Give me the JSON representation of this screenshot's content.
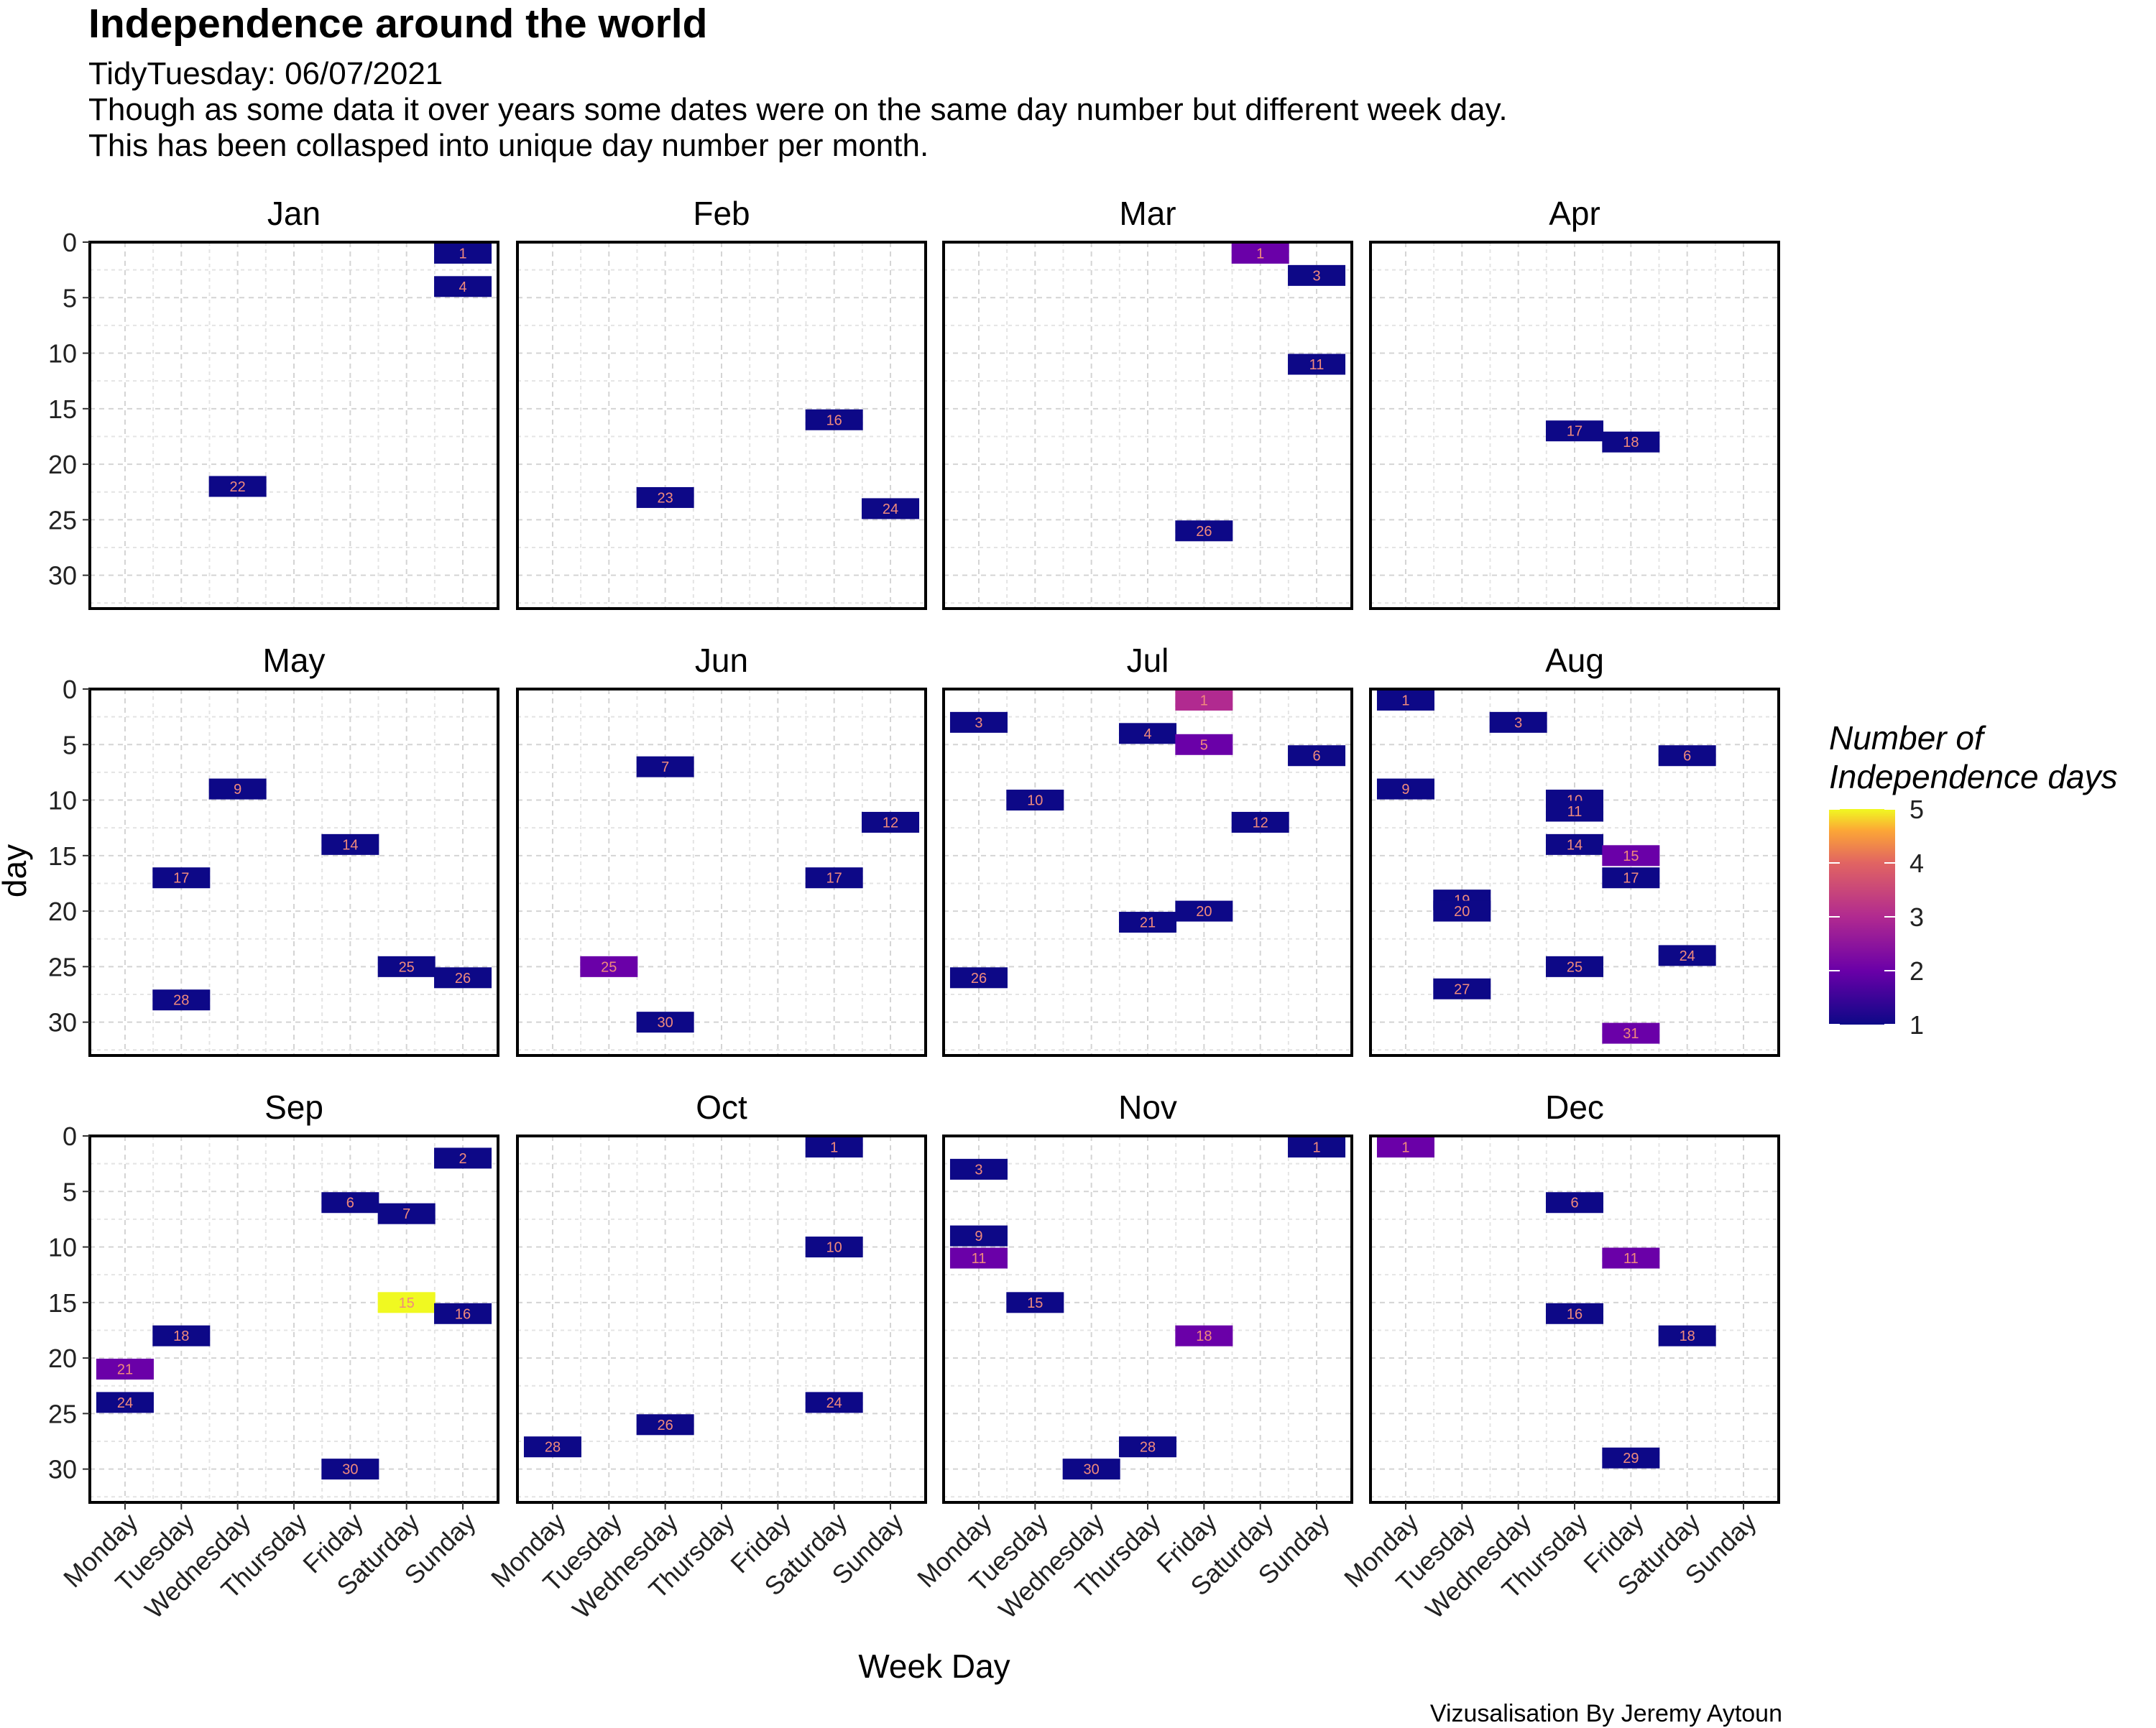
{
  "title": "Independence around the world",
  "subtitle_lines": [
    "TidyTuesday: 06/07/2021",
    "Though as some data it over years some dates were on the same day number but different week day.",
    "This has been collasped into unique day number per month."
  ],
  "caption": "Vizusalisation By Jeremy Aytoun",
  "chart_data": {
    "type": "heatmap",
    "facet_by": "month",
    "xlabel": "Week Day",
    "ylabel": "day",
    "weekdays": [
      "Monday",
      "Tuesday",
      "Wednesday",
      "Thursday",
      "Friday",
      "Saturday",
      "Sunday"
    ],
    "y_ticks": [
      0,
      5,
      10,
      15,
      20,
      25,
      30
    ],
    "y_range": [
      0,
      33
    ],
    "y_reversed": true,
    "grid": true,
    "legend": {
      "title_lines": [
        "Number of",
        "Independence days"
      ],
      "placement": "right",
      "min": 1,
      "max": 5,
      "ticks": [
        1,
        2,
        3,
        4,
        5
      ],
      "palette": [
        "#0d0887",
        "#6a00a8",
        "#b12a90",
        "#e16462",
        "#fca636",
        "#f0f921"
      ]
    },
    "label_color": "#f08a7c",
    "months": [
      {
        "name": "Jan",
        "cells": [
          {
            "weekday": "Sunday",
            "day": 1,
            "count": 1
          },
          {
            "weekday": "Sunday",
            "day": 4,
            "count": 1
          },
          {
            "weekday": "Wednesday",
            "day": 22,
            "count": 1
          }
        ]
      },
      {
        "name": "Feb",
        "cells": [
          {
            "weekday": "Saturday",
            "day": 16,
            "count": 1
          },
          {
            "weekday": "Wednesday",
            "day": 23,
            "count": 1
          },
          {
            "weekday": "Sunday",
            "day": 24,
            "count": 1
          }
        ]
      },
      {
        "name": "Mar",
        "cells": [
          {
            "weekday": "Saturday",
            "day": 1,
            "count": 2
          },
          {
            "weekday": "Sunday",
            "day": 3,
            "count": 1
          },
          {
            "weekday": "Sunday",
            "day": 11,
            "count": 1
          },
          {
            "weekday": "Friday",
            "day": 26,
            "count": 1
          }
        ]
      },
      {
        "name": "Apr",
        "cells": [
          {
            "weekday": "Thursday",
            "day": 17,
            "count": 1
          },
          {
            "weekday": "Friday",
            "day": 18,
            "count": 1
          }
        ]
      },
      {
        "name": "May",
        "cells": [
          {
            "weekday": "Wednesday",
            "day": 9,
            "count": 1
          },
          {
            "weekday": "Friday",
            "day": 14,
            "count": 1
          },
          {
            "weekday": "Tuesday",
            "day": 17,
            "count": 1
          },
          {
            "weekday": "Saturday",
            "day": 25,
            "count": 1
          },
          {
            "weekday": "Sunday",
            "day": 26,
            "count": 1
          },
          {
            "weekday": "Tuesday",
            "day": 28,
            "count": 1
          }
        ]
      },
      {
        "name": "Jun",
        "cells": [
          {
            "weekday": "Wednesday",
            "day": 7,
            "count": 1
          },
          {
            "weekday": "Sunday",
            "day": 12,
            "count": 1
          },
          {
            "weekday": "Saturday",
            "day": 17,
            "count": 1
          },
          {
            "weekday": "Tuesday",
            "day": 25,
            "count": 2
          },
          {
            "weekday": "Wednesday",
            "day": 30,
            "count": 1
          }
        ]
      },
      {
        "name": "Jul",
        "cells": [
          {
            "weekday": "Friday",
            "day": 1,
            "count": 3
          },
          {
            "weekday": "Monday",
            "day": 3,
            "count": 1
          },
          {
            "weekday": "Thursday",
            "day": 4,
            "count": 1
          },
          {
            "weekday": "Friday",
            "day": 5,
            "count": 2
          },
          {
            "weekday": "Sunday",
            "day": 6,
            "count": 1
          },
          {
            "weekday": "Tuesday",
            "day": 10,
            "count": 1
          },
          {
            "weekday": "Saturday",
            "day": 12,
            "count": 1
          },
          {
            "weekday": "Friday",
            "day": 20,
            "count": 1
          },
          {
            "weekday": "Thursday",
            "day": 21,
            "count": 1
          },
          {
            "weekday": "Monday",
            "day": 26,
            "count": 1
          }
        ]
      },
      {
        "name": "Aug",
        "cells": [
          {
            "weekday": "Monday",
            "day": 1,
            "count": 1
          },
          {
            "weekday": "Wednesday",
            "day": 3,
            "count": 1
          },
          {
            "weekday": "Saturday",
            "day": 6,
            "count": 1
          },
          {
            "weekday": "Monday",
            "day": 9,
            "count": 1
          },
          {
            "weekday": "Thursday",
            "day": 10,
            "count": 1
          },
          {
            "weekday": "Thursday",
            "day": 11,
            "count": 1
          },
          {
            "weekday": "Thursday",
            "day": 14,
            "count": 1
          },
          {
            "weekday": "Friday",
            "day": 15,
            "count": 2
          },
          {
            "weekday": "Friday",
            "day": 17,
            "count": 1
          },
          {
            "weekday": "Tuesday",
            "day": 19,
            "count": 1
          },
          {
            "weekday": "Tuesday",
            "day": 20,
            "count": 1
          },
          {
            "weekday": "Saturday",
            "day": 24,
            "count": 1
          },
          {
            "weekday": "Thursday",
            "day": 25,
            "count": 1
          },
          {
            "weekday": "Tuesday",
            "day": 27,
            "count": 1
          },
          {
            "weekday": "Friday",
            "day": 31,
            "count": 2
          }
        ]
      },
      {
        "name": "Sep",
        "cells": [
          {
            "weekday": "Sunday",
            "day": 2,
            "count": 1
          },
          {
            "weekday": "Friday",
            "day": 6,
            "count": 1
          },
          {
            "weekday": "Saturday",
            "day": 7,
            "count": 1
          },
          {
            "weekday": "Saturday",
            "day": 15,
            "count": 5
          },
          {
            "weekday": "Sunday",
            "day": 16,
            "count": 1
          },
          {
            "weekday": "Tuesday",
            "day": 18,
            "count": 1
          },
          {
            "weekday": "Monday",
            "day": 21,
            "count": 2
          },
          {
            "weekday": "Monday",
            "day": 24,
            "count": 1
          },
          {
            "weekday": "Friday",
            "day": 30,
            "count": 1
          }
        ]
      },
      {
        "name": "Oct",
        "cells": [
          {
            "weekday": "Saturday",
            "day": 1,
            "count": 1
          },
          {
            "weekday": "Saturday",
            "day": 10,
            "count": 1
          },
          {
            "weekday": "Saturday",
            "day": 24,
            "count": 1
          },
          {
            "weekday": "Wednesday",
            "day": 26,
            "count": 1
          },
          {
            "weekday": "Monday",
            "day": 28,
            "count": 1
          }
        ]
      },
      {
        "name": "Nov",
        "cells": [
          {
            "weekday": "Sunday",
            "day": 1,
            "count": 1
          },
          {
            "weekday": "Monday",
            "day": 3,
            "count": 1
          },
          {
            "weekday": "Monday",
            "day": 9,
            "count": 1
          },
          {
            "weekday": "Monday",
            "day": 11,
            "count": 2
          },
          {
            "weekday": "Tuesday",
            "day": 15,
            "count": 1
          },
          {
            "weekday": "Friday",
            "day": 18,
            "count": 2
          },
          {
            "weekday": "Thursday",
            "day": 28,
            "count": 1
          },
          {
            "weekday": "Wednesday",
            "day": 30,
            "count": 1
          }
        ]
      },
      {
        "name": "Dec",
        "cells": [
          {
            "weekday": "Monday",
            "day": 1,
            "count": 2
          },
          {
            "weekday": "Thursday",
            "day": 6,
            "count": 1
          },
          {
            "weekday": "Friday",
            "day": 11,
            "count": 2
          },
          {
            "weekday": "Thursday",
            "day": 16,
            "count": 1
          },
          {
            "weekday": "Saturday",
            "day": 18,
            "count": 1
          },
          {
            "weekday": "Friday",
            "day": 29,
            "count": 1
          }
        ]
      }
    ]
  }
}
